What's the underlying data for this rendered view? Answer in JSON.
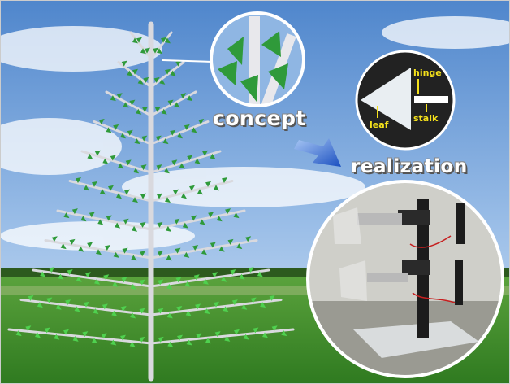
{
  "labels": {
    "concept": "concept",
    "realization": "realization"
  },
  "inset": {
    "hinge": "hinge",
    "leaf": "leaf",
    "stalk": "stalk"
  },
  "colors": {
    "sky": "#6f9fd8",
    "grass": "#3f8f2c",
    "trunk": "#dcdce0",
    "leaf_green": "#3aa63a",
    "arrow_blue": "#1f5fd0",
    "label_yellow": "#f5e11b"
  }
}
